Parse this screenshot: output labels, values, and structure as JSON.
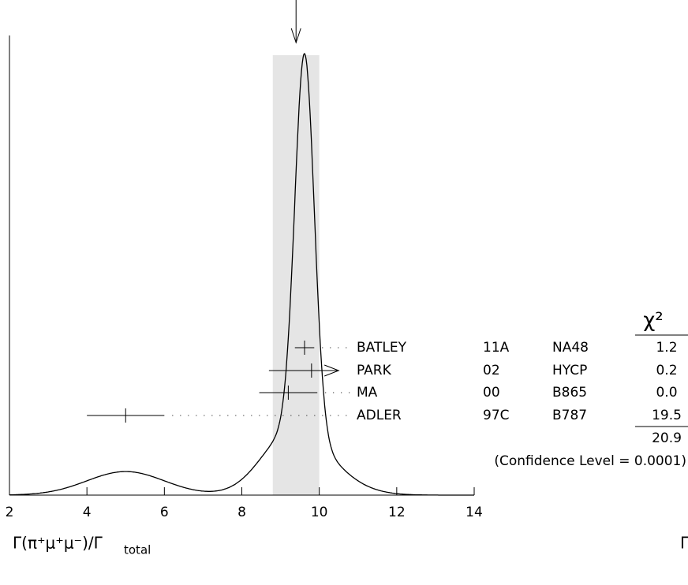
{
  "chart_data": {
    "type": "ideogram",
    "xlim": [
      2,
      14
    ],
    "xticks": [
      2,
      4,
      6,
      8,
      10,
      12,
      14
    ],
    "xlabel": "Γ(π⁺μ⁺μ⁻)/Γ",
    "xlabel_sub": "total",
    "cut_label": "Γ",
    "average": 9.4,
    "average_error": 0.6,
    "chi2_header": "χ²",
    "measurements": [
      {
        "name": "BATLEY",
        "year": "11A",
        "experiment": "NA48",
        "value": 9.62,
        "error": [
          0.25,
          0.25
        ],
        "arrow": false,
        "chi2": "1.2"
      },
      {
        "name": "PARK",
        "year": "02",
        "experiment": "HYCP",
        "value": 9.8,
        "error": [
          1.1,
          0.7
        ],
        "arrow": true,
        "chi2": "0.2"
      },
      {
        "name": "MA",
        "year": "00",
        "experiment": "B865",
        "value": 9.2,
        "error": [
          0.75,
          0.75
        ],
        "arrow": false,
        "chi2": "0.0"
      },
      {
        "name": "ADLER",
        "year": "97C",
        "experiment": "B787",
        "value": 5.0,
        "error": [
          1.0,
          1.0
        ],
        "arrow": false,
        "chi2": "19.5"
      }
    ],
    "chi2_total": "20.9",
    "confidence": "(Confidence Level = 0.0001)"
  }
}
